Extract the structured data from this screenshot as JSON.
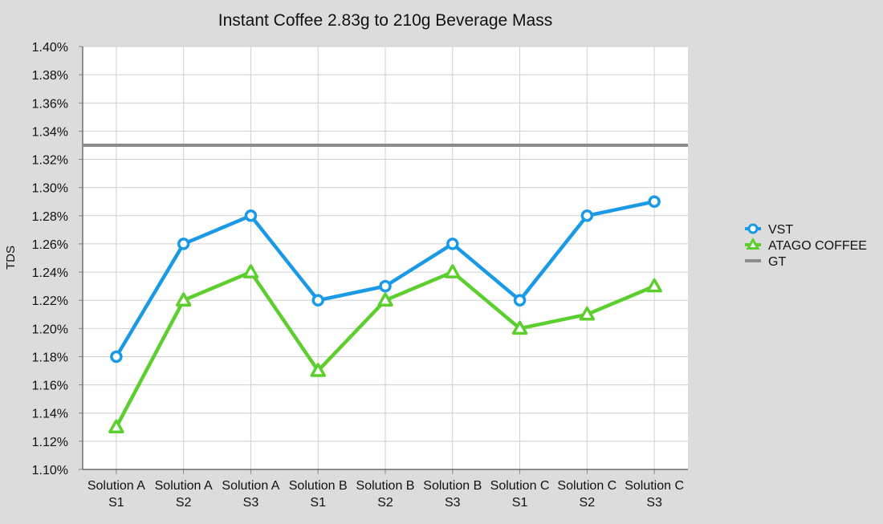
{
  "chart_data": {
    "type": "line",
    "title": "Instant Coffee 2.83g to 210g Beverage Mass",
    "xlabel": "",
    "ylabel": "TDS",
    "ylim": [
      1.1,
      1.4
    ],
    "yticks": [
      "1.10%",
      "1.12%",
      "1.14%",
      "1.16%",
      "1.18%",
      "1.20%",
      "1.22%",
      "1.24%",
      "1.26%",
      "1.28%",
      "1.30%",
      "1.32%",
      "1.34%",
      "1.36%",
      "1.38%",
      "1.40%"
    ],
    "categories": [
      [
        "Solution A",
        "S1"
      ],
      [
        "Solution A",
        "S2"
      ],
      [
        "Solution A",
        "S3"
      ],
      [
        "Solution B",
        "S1"
      ],
      [
        "Solution B",
        "S2"
      ],
      [
        "Solution B",
        "S3"
      ],
      [
        "Solution C",
        "S1"
      ],
      [
        "Solution C",
        "S2"
      ],
      [
        "Solution C",
        "S3"
      ]
    ],
    "series": [
      {
        "name": "VST",
        "color": "#1a9ae6",
        "marker": "circle",
        "values": [
          1.18,
          1.26,
          1.28,
          1.22,
          1.23,
          1.26,
          1.22,
          1.28,
          1.29
        ]
      },
      {
        "name": "ATAGO COFFEE",
        "color": "#5ccf2e",
        "marker": "triangle",
        "values": [
          1.13,
          1.22,
          1.24,
          1.17,
          1.22,
          1.24,
          1.2,
          1.21,
          1.23
        ]
      },
      {
        "name": "GT",
        "color": "#8c8c8c",
        "marker": "none",
        "values": [
          1.33,
          1.33,
          1.33,
          1.33,
          1.33,
          1.33,
          1.33,
          1.33,
          1.33
        ]
      }
    ],
    "grid": true,
    "legend_position": "right"
  }
}
